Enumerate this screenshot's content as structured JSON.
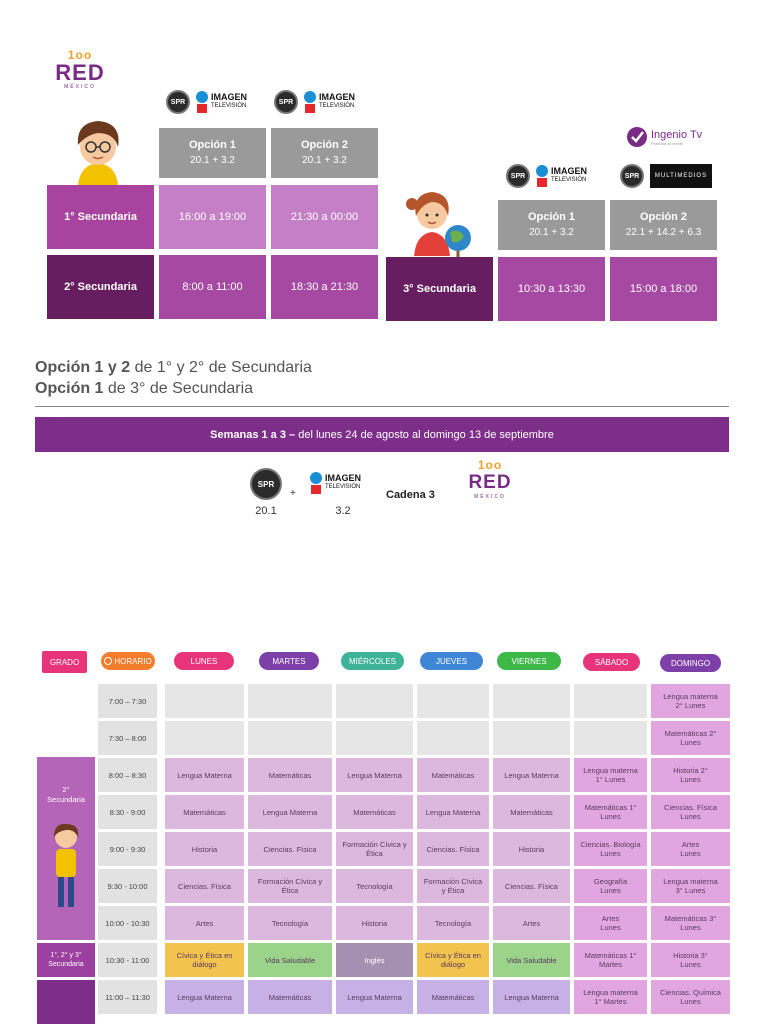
{
  "top_logo": {
    "swirl": "1oo",
    "word": "RED",
    "sub": "MÉXICO"
  },
  "left_table": {
    "channel_logos": [
      {
        "spr": "SPR",
        "imagen": "IMAGEN",
        "imagen_sub": "TELEVISIÓN"
      },
      {
        "spr": "SPR",
        "imagen": "IMAGEN",
        "imagen_sub": "TELEVISIÓN"
      }
    ],
    "options": [
      {
        "label": "Opción 1",
        "channels": "20.1  +  3.2"
      },
      {
        "label": "Opción 2",
        "channels": "20.1  +  3.2"
      }
    ],
    "rows": [
      {
        "grade": "1° Secundaria",
        "times": [
          "16:00 a 19:00",
          "21:30 a 00:00"
        ]
      },
      {
        "grade": "2° Secundaria",
        "times": [
          "8:00 a 11:00",
          "18:30 a 21:30"
        ]
      }
    ]
  },
  "right_table": {
    "ingenio": "Ingenio Tv",
    "ingenio_sub": "Potencia tu mente",
    "channel_logos": [
      {
        "spr": "SPR",
        "imagen": "IMAGEN",
        "imagen_sub": "TELEVISIÓN"
      },
      {
        "spr": "SPR",
        "multimedios": "MULTIMEDIOS"
      }
    ],
    "options": [
      {
        "label": "Opción 1",
        "channels": "20.1  +  3.2"
      },
      {
        "label": "Opción 2",
        "channels": "22.1 + 14.2  + 6.3"
      }
    ],
    "row": {
      "grade": "3° Secundaria",
      "times": [
        "10:30 a 13:30",
        "15:00 a 18:00"
      ]
    }
  },
  "legend": {
    "line1_bold": "Opción 1 y 2",
    "line1_rest": " de 1° y 2° de Secundaria",
    "line2_bold": "Opción 1",
    "line2_rest": " de 3° de Secundaria"
  },
  "banner": {
    "bold": "Semanas 1 a 3 –",
    "rest": " del lunes 24 de agosto al domingo 13 de septiembre"
  },
  "channel_line": {
    "spr": "SPR",
    "spr_num": "20.1",
    "plus": "+",
    "imagen": "IMAGEN",
    "imagen_sub": "TELEVISIÓN",
    "imagen_num": "3.2",
    "cadena": "Cadena 3",
    "red": {
      "swirl": "1oo",
      "word": "RED",
      "sub": "MÉXICO"
    }
  },
  "timetable": {
    "headers": {
      "grado": "GRADO",
      "horario": "HORARIO",
      "days": [
        "LUNES",
        "MARTES",
        "MIÉRCOLES",
        "JUEVES",
        "VIERNES",
        "SÁBADO",
        "DOMINGO"
      ]
    },
    "header_colors": {
      "grado": "#e8347a",
      "horario": "#f47c2a",
      "days": [
        "#e8347a",
        "#7d3fa8",
        "#3fb39a",
        "#3f86d6",
        "#3fb84a",
        "#e8347a",
        "#7d3fa8"
      ]
    },
    "grades": [
      "2°\nSecundaria",
      "1°, 2° y 3°\nSecundaria"
    ],
    "rows": [
      {
        "time": "7:00 – 7:30",
        "cells": [
          "",
          "",
          "",
          "",
          "",
          "",
          "Lengua materna\n2° Lunes"
        ]
      },
      {
        "time": "7:30 – 8:00",
        "cells": [
          "",
          "",
          "",
          "",
          "",
          "",
          "Matemáticas 2°\nLunes"
        ]
      },
      {
        "time": "8:00 – 8:30",
        "cells": [
          "Lengua Materna",
          "Matemáticas",
          "Lengua Materna",
          "Matemáticas",
          "Lengua Materna",
          "Lengua materna\n1° Lunes",
          "Historia 2°\nLunes"
        ]
      },
      {
        "time": "8:30 - 9:00",
        "cells": [
          "Matemáticas",
          "Lengua Materna",
          "Matemáticas",
          "Lengua Materna",
          "Matemáticas",
          "Matemáticas 1°\nLunes",
          "Ciencias. Física\nLunes"
        ]
      },
      {
        "time": "9:00 - 9:30",
        "cells": [
          "Historia",
          "Ciencias. Física",
          "Formación Cívica y\nÉtica",
          "Ciencias. Física",
          "Historia",
          "Ciencias. Biología\nLunes",
          "Artes\nLunes"
        ]
      },
      {
        "time": "9:30 - 10:00",
        "cells": [
          "Ciencias. Física",
          "Formación Cívica y\nÉtica",
          "Tecnología",
          "Formación Cívica\ny Ética",
          "Ciencias. Física",
          "Geografía\nLunes",
          "Lengua materna\n3° Lunes"
        ]
      },
      {
        "time": "10:00 - 10:30",
        "cells": [
          "Artes",
          "Tecnología",
          "Historia",
          "Tecnología",
          "Artes",
          "Artes\nLunes",
          "Matemáticas 3°\nLunes"
        ]
      },
      {
        "time": "10:30 - 11:00",
        "cells": [
          "Cívica y Ética en\ndiálogo",
          "Vida Saludable",
          "Inglés",
          "Cívica y Ética en\ndiálogo",
          "Vida Saludable",
          "Matemáticas 1°\nMartes",
          "Historia 3°\nLunes"
        ]
      },
      {
        "time": "11:00 – 11:30",
        "cells": [
          "Lengua Materna",
          "Matemáticas",
          "Lengua Materna",
          "Matemáticas",
          "Lengua Materna",
          "Lengua materna\n1° Martes",
          "Ciencias. Química\nLunes"
        ]
      }
    ]
  }
}
